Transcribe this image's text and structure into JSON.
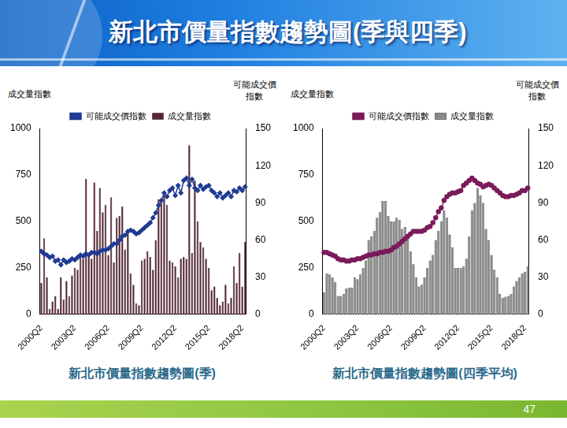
{
  "header": {
    "title": "新北市價量指數趨勢圖(季與四季)",
    "page_number": 47
  },
  "chart_data": [
    {
      "type": "bar",
      "title": "新北市價量指數趨勢圖(季)",
      "y_label": "成交量指數",
      "y2_label": "可能成交價指數",
      "categories": [
        "2000Q2",
        null,
        null,
        null,
        null,
        null,
        null,
        null,
        null,
        null,
        null,
        null,
        "2003Q2",
        null,
        null,
        null,
        null,
        null,
        null,
        null,
        null,
        null,
        null,
        null,
        "2006Q2",
        null,
        null,
        null,
        null,
        null,
        null,
        null,
        null,
        null,
        null,
        null,
        "2009Q2",
        null,
        null,
        null,
        null,
        null,
        null,
        null,
        null,
        null,
        null,
        null,
        "2012Q2",
        null,
        null,
        null,
        null,
        null,
        null,
        null,
        null,
        null,
        null,
        null,
        "2015Q2",
        null,
        null,
        null,
        null,
        null,
        null,
        null,
        null,
        null,
        null,
        null,
        "2018Q2",
        null
      ],
      "series": [
        {
          "name": "成交量指數",
          "type": "bar",
          "color": "#5b2333",
          "values": [
            170,
            410,
            200,
            30,
            70,
            100,
            30,
            200,
            80,
            180,
            100,
            210,
            250,
            240,
            330,
            300,
            730,
            330,
            300,
            710,
            450,
            680,
            550,
            590,
            320,
            630,
            280,
            520,
            530,
            580,
            350,
            440,
            220,
            160,
            60,
            50,
            290,
            300,
            340,
            310,
            240,
            400,
            620,
            610,
            640,
            590,
            290,
            280,
            260,
            200,
            300,
            310,
            300,
            910,
            330,
            720,
            500,
            390,
            360,
            300,
            250,
            130,
            150,
            90,
            50,
            70,
            160,
            60,
            90,
            260,
            170,
            330,
            150,
            390
          ]
        },
        {
          "name": "可能成交價指數",
          "type": "line",
          "axis": "y2",
          "color": "#1f3a93",
          "marker": "diamond",
          "line_style": "solid",
          "values": [
            51,
            49,
            48,
            46,
            47,
            43,
            44,
            40,
            44,
            42,
            43,
            45,
            44,
            46,
            48,
            47,
            49,
            48,
            50,
            50,
            49,
            51,
            52,
            52,
            53,
            55,
            57,
            57,
            60,
            63,
            64,
            67,
            68,
            67,
            65,
            66,
            68,
            70,
            72,
            74,
            78,
            82,
            88,
            92,
            98,
            95,
            100,
            102,
            96,
            104,
            98,
            108,
            110,
            104,
            109,
            102,
            100,
            104,
            101,
            103,
            104,
            100,
            98,
            95,
            98,
            94,
            96,
            98,
            95,
            100,
            99,
            102,
            100,
            103
          ]
        }
      ],
      "ylim": [
        0,
        1000
      ],
      "yticks": [
        0,
        250,
        500,
        750,
        1000
      ],
      "y2lim": [
        0,
        150
      ],
      "y2ticks": [
        0,
        30,
        60,
        90,
        120,
        150
      ],
      "grid": false,
      "legend": "top"
    },
    {
      "type": "bar",
      "title": "新北市價量指數趨勢圖(四季平均)",
      "y_label": "成交量指數",
      "y2_label": "可能成交價指數",
      "categories": [
        "2000Q2",
        null,
        null,
        null,
        null,
        null,
        null,
        null,
        null,
        null,
        null,
        null,
        "2003Q2",
        null,
        null,
        null,
        null,
        null,
        null,
        null,
        null,
        null,
        null,
        null,
        "2006Q2",
        null,
        null,
        null,
        null,
        null,
        null,
        null,
        null,
        null,
        null,
        null,
        "2009Q2",
        null,
        null,
        null,
        null,
        null,
        null,
        null,
        null,
        null,
        null,
        null,
        "2012Q2",
        null,
        null,
        null,
        null,
        null,
        null,
        null,
        null,
        null,
        null,
        null,
        "2015Q2",
        null,
        null,
        null,
        null,
        null,
        null,
        null,
        null,
        null,
        null,
        null,
        "2018Q2",
        null
      ],
      "series": [
        {
          "name": "成交量指數",
          "type": "bar",
          "color": "#8a8a8a",
          "values": [
            120,
            220,
            215,
            200,
            175,
            100,
            100,
            110,
            140,
            145,
            145,
            200,
            190,
            215,
            250,
            290,
            400,
            420,
            450,
            520,
            550,
            610,
            610,
            530,
            500,
            500,
            520,
            510,
            460,
            470,
            430,
            340,
            270,
            200,
            150,
            160,
            200,
            250,
            290,
            320,
            400,
            450,
            500,
            560,
            520,
            430,
            360,
            250,
            250,
            250,
            260,
            300,
            420,
            560,
            600,
            680,
            640,
            600,
            460,
            400,
            320,
            240,
            200,
            110,
            90,
            95,
            100,
            110,
            150,
            180,
            200,
            220,
            230,
            260
          ]
        },
        {
          "name": "可能成交價指數",
          "type": "line",
          "axis": "y2",
          "color": "#7a1b5a",
          "marker": "circle",
          "line_style": "solid",
          "values": [
            50,
            50,
            49,
            48,
            47,
            45,
            44,
            44,
            43,
            43,
            44,
            44,
            45,
            45,
            46,
            47,
            48,
            48,
            49,
            49,
            50,
            50,
            51,
            51,
            52,
            54,
            55,
            57,
            59,
            61,
            63,
            65,
            67,
            67,
            67,
            67,
            68,
            70,
            71,
            74,
            78,
            83,
            86,
            92,
            95,
            97,
            98,
            98,
            99,
            100,
            104,
            106,
            108,
            110,
            108,
            106,
            105,
            103,
            104,
            105,
            104,
            102,
            100,
            98,
            96,
            95,
            95,
            96,
            96,
            97,
            98,
            100,
            100,
            102
          ]
        }
      ],
      "ylim": [
        0,
        1000
      ],
      "yticks": [
        0,
        250,
        500,
        750,
        1000
      ],
      "y2lim": [
        0,
        150
      ],
      "y2ticks": [
        0,
        30,
        60,
        90,
        120,
        150
      ],
      "grid": false,
      "legend": "top"
    }
  ]
}
